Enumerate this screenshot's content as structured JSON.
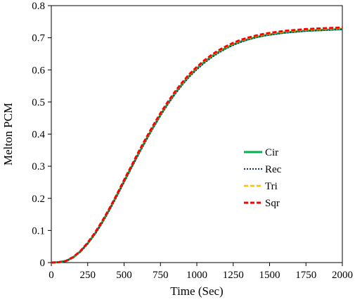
{
  "chart_data": {
    "type": "line",
    "title": "",
    "xlabel": "Time (Sec)",
    "ylabel": "Melton PCM",
    "xlim": [
      0,
      2000
    ],
    "ylim": [
      0,
      0.8
    ],
    "x_ticks": [
      0,
      250,
      500,
      750,
      1000,
      1250,
      1500,
      1750,
      2000
    ],
    "y_ticks": [
      0,
      0.1,
      0.2,
      0.3,
      0.4,
      0.5,
      0.6,
      0.7,
      0.8
    ],
    "x_tick_labels": [
      "0",
      "250",
      "500",
      "750",
      "1000",
      "1250",
      "1500",
      "1750",
      "2000"
    ],
    "y_tick_labels": [
      "0",
      "0.1",
      "0.2",
      "0.3",
      "0.4",
      "0.5",
      "0.6",
      "0.7",
      "0.8"
    ],
    "grid": false,
    "legend_position": "center-right",
    "x": [
      0,
      50,
      100,
      150,
      200,
      250,
      300,
      350,
      400,
      450,
      500,
      550,
      600,
      650,
      700,
      750,
      800,
      850,
      900,
      950,
      1000,
      1050,
      1100,
      1150,
      1200,
      1250,
      1300,
      1350,
      1400,
      1450,
      1500,
      1550,
      1600,
      1650,
      1700,
      1750,
      1800,
      1850,
      1900,
      1950,
      2000
    ],
    "series": [
      {
        "name": "Cir",
        "color": "#00b050",
        "dash": "solid",
        "values": [
          0,
          0.001,
          0.005,
          0.016,
          0.035,
          0.06,
          0.09,
          0.126,
          0.166,
          0.209,
          0.253,
          0.297,
          0.34,
          0.382,
          0.422,
          0.46,
          0.495,
          0.527,
          0.556,
          0.582,
          0.604,
          0.624,
          0.641,
          0.656,
          0.668,
          0.679,
          0.688,
          0.695,
          0.701,
          0.706,
          0.71,
          0.713,
          0.716,
          0.718,
          0.72,
          0.722,
          0.723,
          0.724,
          0.725,
          0.726,
          0.727
        ]
      },
      {
        "name": "Rec",
        "color": "#1f3864",
        "dash": "dotted",
        "values": [
          0,
          0.001,
          0.004,
          0.015,
          0.033,
          0.058,
          0.088,
          0.123,
          0.163,
          0.206,
          0.25,
          0.294,
          0.337,
          0.379,
          0.419,
          0.457,
          0.492,
          0.524,
          0.553,
          0.579,
          0.601,
          0.621,
          0.638,
          0.653,
          0.666,
          0.677,
          0.686,
          0.694,
          0.7,
          0.705,
          0.709,
          0.712,
          0.715,
          0.717,
          0.719,
          0.721,
          0.722,
          0.723,
          0.724,
          0.725,
          0.726
        ]
      },
      {
        "name": "Tri",
        "color": "#ffc000",
        "dash": "dashed",
        "values": [
          0,
          0.001,
          0.005,
          0.016,
          0.035,
          0.061,
          0.092,
          0.128,
          0.168,
          0.211,
          0.256,
          0.3,
          0.343,
          0.385,
          0.425,
          0.463,
          0.498,
          0.53,
          0.559,
          0.585,
          0.607,
          0.627,
          0.644,
          0.659,
          0.671,
          0.682,
          0.691,
          0.698,
          0.704,
          0.709,
          0.713,
          0.716,
          0.719,
          0.721,
          0.723,
          0.725,
          0.726,
          0.727,
          0.728,
          0.729,
          0.73
        ]
      },
      {
        "name": "Sqr",
        "color": "#ff0000",
        "dash": "dashed",
        "values": [
          0,
          0.001,
          0.005,
          0.017,
          0.036,
          0.062,
          0.093,
          0.129,
          0.169,
          0.212,
          0.257,
          0.301,
          0.345,
          0.387,
          0.427,
          0.465,
          0.5,
          0.532,
          0.561,
          0.587,
          0.609,
          0.629,
          0.646,
          0.661,
          0.673,
          0.684,
          0.693,
          0.7,
          0.706,
          0.711,
          0.715,
          0.718,
          0.721,
          0.723,
          0.725,
          0.727,
          0.728,
          0.729,
          0.73,
          0.731,
          0.732
        ]
      }
    ]
  }
}
